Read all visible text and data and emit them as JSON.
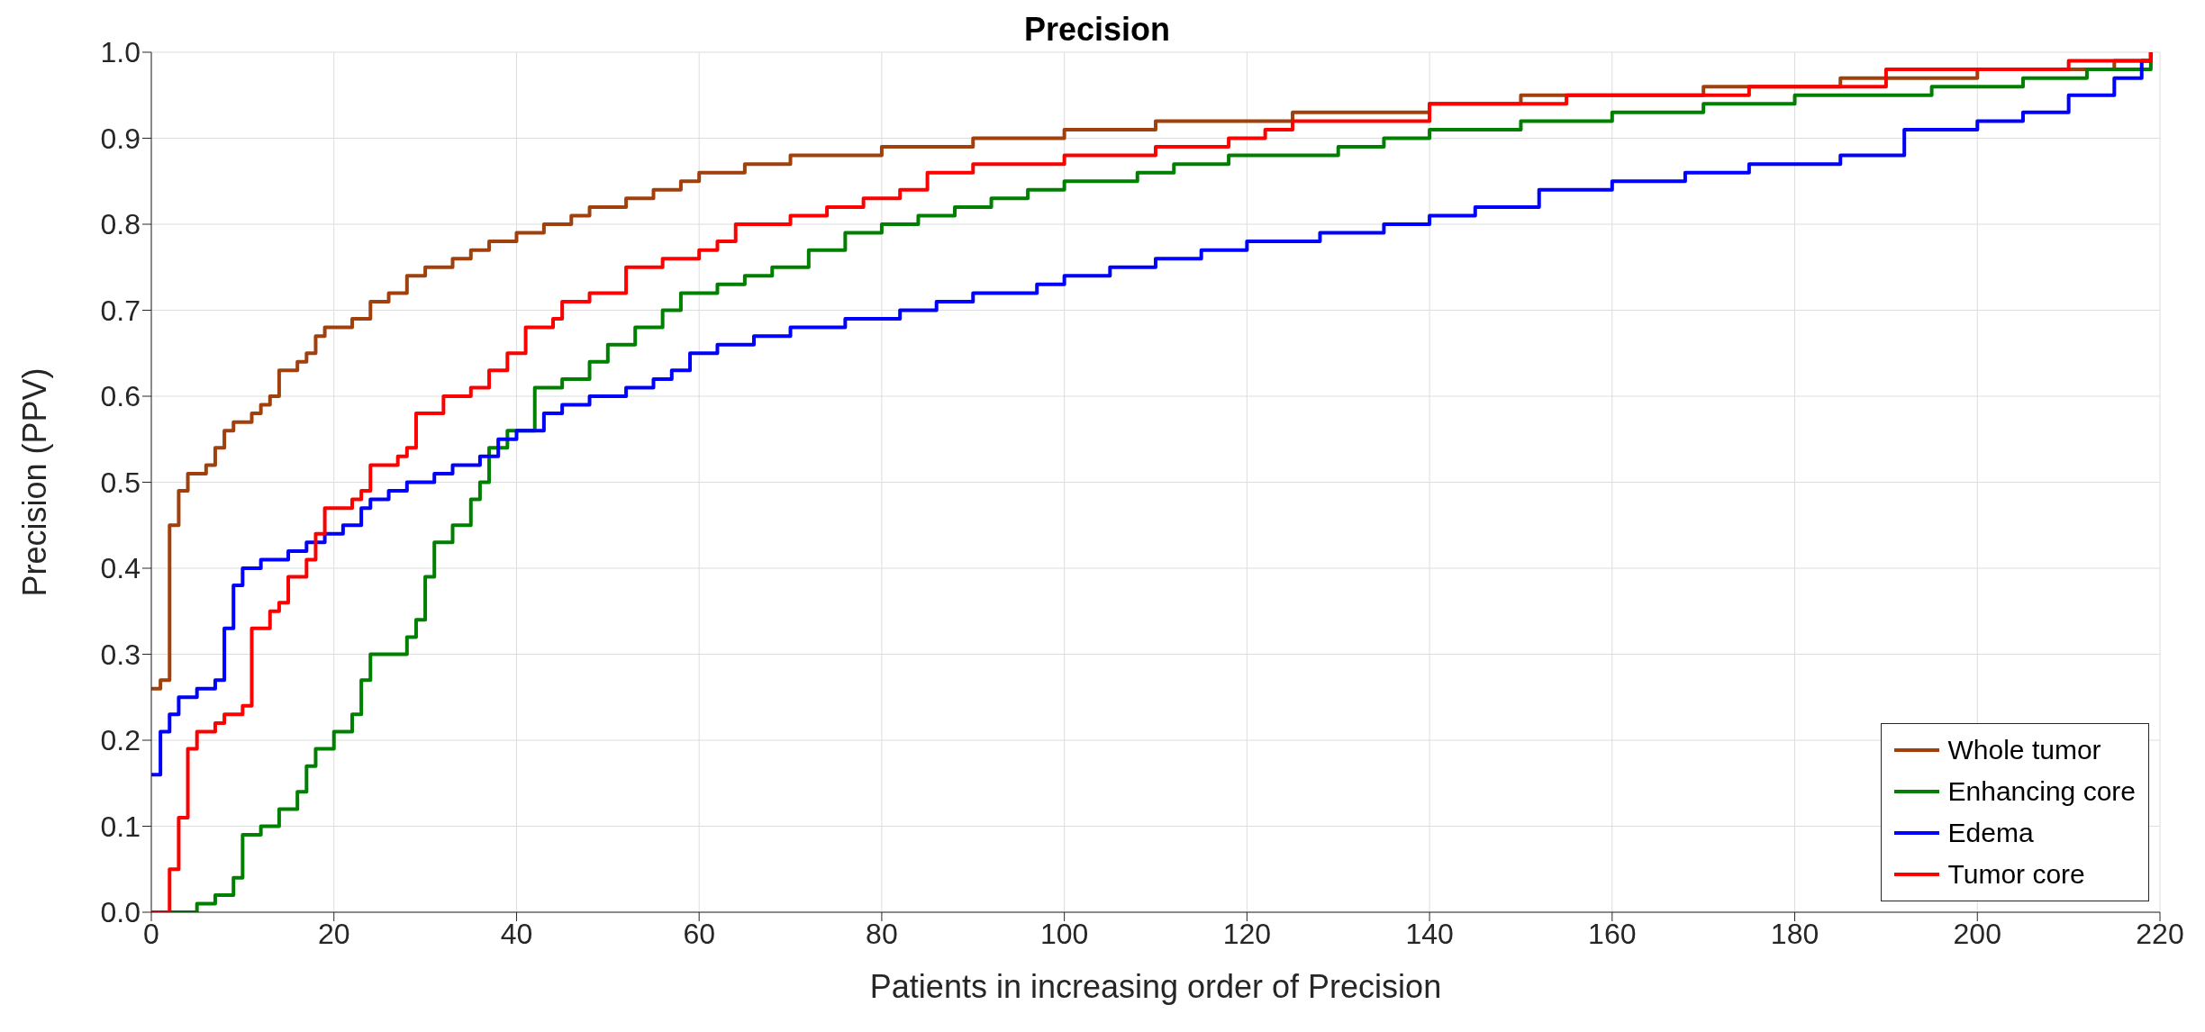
{
  "chart_data": {
    "type": "step",
    "title": "Precision",
    "xlabel": "Patients in increasing order of Precision",
    "ylabel": "Precision (PPV)",
    "xlim": [
      0,
      220
    ],
    "xticks": [
      0,
      20,
      40,
      60,
      80,
      100,
      120,
      140,
      160,
      180,
      200,
      220
    ],
    "ylim": [
      0,
      1
    ],
    "yticks": [
      {
        "value": 0,
        "label": "0.0"
      },
      0.1,
      0.2,
      0.3,
      0.4,
      0.5,
      0.6,
      0.7,
      0.8,
      0.9,
      {
        "value": 1,
        "label": "1.0"
      }
    ],
    "grid": true,
    "legend": "bottom right",
    "marker": "none",
    "line_style": "solid",
    "series": [
      {
        "name": "Whole tumor",
        "color": "#a0410d",
        "x": [
          0,
          1,
          2,
          3,
          4,
          6,
          7,
          8,
          9,
          11,
          12,
          13,
          14,
          16,
          17,
          18,
          19,
          22,
          24,
          26,
          28,
          30,
          33,
          35,
          37,
          40,
          43,
          46,
          48,
          52,
          55,
          58,
          60,
          65,
          70,
          80,
          90,
          100,
          110,
          125,
          140,
          150,
          170,
          185,
          200,
          215,
          219
        ],
        "values": [
          0.26,
          0.27,
          0.45,
          0.49,
          0.51,
          0.52,
          0.54,
          0.56,
          0.57,
          0.58,
          0.59,
          0.6,
          0.63,
          0.64,
          0.65,
          0.67,
          0.68,
          0.69,
          0.71,
          0.72,
          0.74,
          0.75,
          0.76,
          0.77,
          0.78,
          0.79,
          0.8,
          0.81,
          0.82,
          0.83,
          0.84,
          0.85,
          0.86,
          0.87,
          0.88,
          0.89,
          0.9,
          0.91,
          0.92,
          0.93,
          0.94,
          0.95,
          0.96,
          0.97,
          0.98,
          0.99,
          1.0
        ]
      },
      {
        "name": "Enhancing core",
        "color": "#008000",
        "x": [
          0,
          5,
          7,
          9,
          10,
          12,
          14,
          16,
          17,
          18,
          20,
          22,
          23,
          24,
          28,
          29,
          30,
          31,
          33,
          35,
          36,
          37,
          39,
          42,
          45,
          48,
          50,
          53,
          56,
          58,
          62,
          65,
          68,
          72,
          76,
          80,
          84,
          88,
          92,
          96,
          100,
          108,
          112,
          118,
          130,
          135,
          140,
          150,
          160,
          170,
          180,
          195,
          205,
          212,
          219
        ],
        "values": [
          0,
          0.01,
          0.02,
          0.04,
          0.09,
          0.1,
          0.12,
          0.14,
          0.17,
          0.19,
          0.21,
          0.23,
          0.27,
          0.3,
          0.32,
          0.34,
          0.39,
          0.43,
          0.45,
          0.48,
          0.5,
          0.54,
          0.56,
          0.61,
          0.62,
          0.64,
          0.66,
          0.68,
          0.7,
          0.72,
          0.73,
          0.74,
          0.75,
          0.77,
          0.79,
          0.8,
          0.81,
          0.82,
          0.83,
          0.84,
          0.85,
          0.86,
          0.87,
          0.88,
          0.89,
          0.9,
          0.91,
          0.92,
          0.93,
          0.94,
          0.95,
          0.96,
          0.97,
          0.98,
          1.0
        ]
      },
      {
        "name": "Edema",
        "color": "#0000ff",
        "x": [
          0,
          1,
          2,
          3,
          5,
          7,
          8,
          9,
          10,
          12,
          15,
          17,
          19,
          21,
          23,
          24,
          26,
          28,
          31,
          33,
          36,
          38,
          40,
          43,
          45,
          48,
          52,
          55,
          57,
          59,
          62,
          66,
          70,
          76,
          82,
          86,
          90,
          97,
          100,
          105,
          110,
          115,
          120,
          128,
          135,
          140,
          145,
          152,
          160,
          168,
          175,
          185,
          192,
          200,
          205,
          210,
          215,
          218,
          219
        ],
        "values": [
          0.16,
          0.21,
          0.23,
          0.25,
          0.26,
          0.27,
          0.33,
          0.38,
          0.4,
          0.41,
          0.42,
          0.43,
          0.44,
          0.45,
          0.47,
          0.48,
          0.49,
          0.5,
          0.51,
          0.52,
          0.53,
          0.55,
          0.56,
          0.58,
          0.59,
          0.6,
          0.61,
          0.62,
          0.63,
          0.65,
          0.66,
          0.67,
          0.68,
          0.69,
          0.7,
          0.71,
          0.72,
          0.73,
          0.74,
          0.75,
          0.76,
          0.77,
          0.78,
          0.79,
          0.8,
          0.81,
          0.82,
          0.84,
          0.85,
          0.86,
          0.87,
          0.88,
          0.91,
          0.92,
          0.93,
          0.95,
          0.97,
          0.99,
          1.0
        ]
      },
      {
        "name": "Tumor core",
        "color": "#ff0000",
        "x": [
          0,
          2,
          3,
          4,
          5,
          7,
          8,
          10,
          11,
          13,
          14,
          15,
          17,
          18,
          19,
          22,
          23,
          24,
          27,
          28,
          29,
          32,
          35,
          37,
          39,
          41,
          44,
          45,
          48,
          52,
          56,
          60,
          62,
          64,
          70,
          74,
          78,
          82,
          85,
          90,
          100,
          110,
          118,
          122,
          125,
          140,
          155,
          175,
          190,
          210,
          219
        ],
        "values": [
          0,
          0.05,
          0.11,
          0.19,
          0.21,
          0.22,
          0.23,
          0.24,
          0.33,
          0.35,
          0.36,
          0.39,
          0.41,
          0.44,
          0.47,
          0.48,
          0.49,
          0.52,
          0.53,
          0.54,
          0.58,
          0.6,
          0.61,
          0.63,
          0.65,
          0.68,
          0.69,
          0.71,
          0.72,
          0.75,
          0.76,
          0.77,
          0.78,
          0.8,
          0.81,
          0.82,
          0.83,
          0.84,
          0.86,
          0.87,
          0.88,
          0.89,
          0.9,
          0.91,
          0.92,
          0.94,
          0.95,
          0.96,
          0.98,
          0.99,
          1.0
        ]
      }
    ]
  }
}
